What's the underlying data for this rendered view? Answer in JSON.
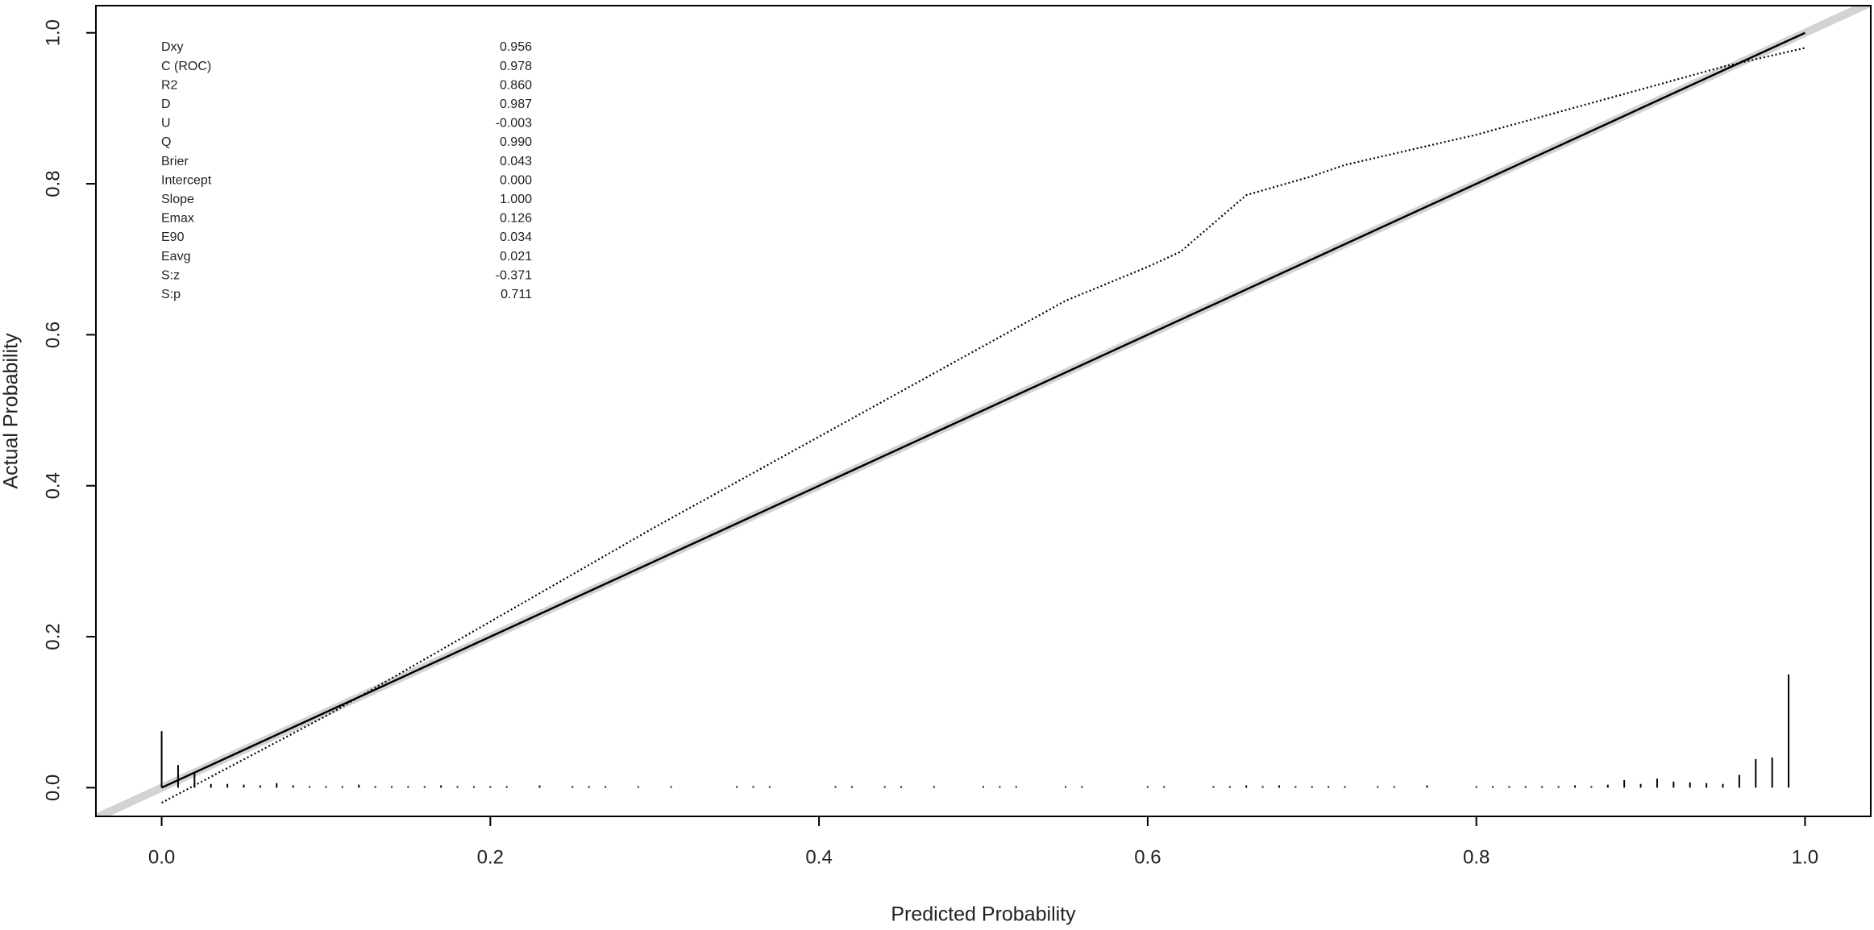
{
  "chart_data": {
    "type": "line",
    "x_label": "Predicted Probability",
    "y_label": "Actual Probability",
    "xlim": [
      -0.04,
      1.04
    ],
    "ylim": [
      -0.038,
      1.036
    ],
    "xticks": [
      {
        "value": 0,
        "label": "0.0"
      },
      0.2,
      0.4,
      0.6,
      0.8,
      {
        "value": 1,
        "label": "1.0"
      }
    ],
    "yticks": [
      {
        "value": 0,
        "label": "0.0"
      },
      0.2,
      0.4,
      0.6,
      0.8,
      {
        "value": 1,
        "label": "1.0"
      }
    ],
    "series": [
      {
        "style": "ideal",
        "color": "#d3d3d3",
        "x": [
          -0.04,
          1.04
        ],
        "values": [
          -0.04,
          1.04
        ]
      },
      {
        "style": "solid",
        "color": "#000000",
        "x": [
          0,
          1
        ],
        "values": [
          0,
          1
        ]
      },
      {
        "style": "dotted",
        "color": "#000000",
        "x": [
          0,
          0.1,
          0.2,
          0.3,
          0.4,
          0.5,
          0.55,
          0.6,
          0.62,
          0.66,
          0.7,
          0.72,
          0.8,
          0.85,
          0.9,
          0.95,
          1.0
        ],
        "values": [
          -0.02,
          0.095,
          0.22,
          0.345,
          0.465,
          0.585,
          0.645,
          0.69,
          0.71,
          0.785,
          0.81,
          0.825,
          0.865,
          0.895,
          0.925,
          0.955,
          0.98
        ]
      },
      {
        "style": "spikes",
        "color": "#000000",
        "x": [
          0,
          0.01,
          0.02,
          0.03,
          0.04,
          0.05,
          0.06,
          0.07,
          0.08,
          0.09,
          0.1,
          0.11,
          0.12,
          0.13,
          0.14,
          0.15,
          0.16,
          0.17,
          0.18,
          0.19,
          0.2,
          0.21,
          0.23,
          0.25,
          0.26,
          0.27,
          0.29,
          0.31,
          0.35,
          0.36,
          0.37,
          0.41,
          0.42,
          0.44,
          0.45,
          0.47,
          0.5,
          0.51,
          0.52,
          0.55,
          0.56,
          0.6,
          0.61,
          0.64,
          0.65,
          0.66,
          0.67,
          0.68,
          0.69,
          0.7,
          0.71,
          0.72,
          0.74,
          0.75,
          0.77,
          0.8,
          0.81,
          0.82,
          0.83,
          0.84,
          0.85,
          0.86,
          0.87,
          0.88,
          0.89,
          0.9,
          0.91,
          0.92,
          0.93,
          0.94,
          0.95,
          0.96,
          0.97,
          0.98,
          0.99
        ],
        "values": [
          0.075,
          0.03,
          0.02,
          0.005,
          0.005,
          0.004,
          0.003,
          0.006,
          0.003,
          0.002,
          0.002,
          0.002,
          0.004,
          0.002,
          0.002,
          0.002,
          0.002,
          0.003,
          0.002,
          0.002,
          0.002,
          0.002,
          0.003,
          0.002,
          0.002,
          0.002,
          0.002,
          0.002,
          0.002,
          0.002,
          0.002,
          0.002,
          0.002,
          0.002,
          0.002,
          0.002,
          0.002,
          0.002,
          0.002,
          0.002,
          0.002,
          0.002,
          0.002,
          0.002,
          0.002,
          0.003,
          0.002,
          0.003,
          0.002,
          0.002,
          0.002,
          0.002,
          0.002,
          0.002,
          0.003,
          0.002,
          0.002,
          0.002,
          0.002,
          0.002,
          0.002,
          0.003,
          0.002,
          0.004,
          0.01,
          0.005,
          0.012,
          0.008,
          0.007,
          0.006,
          0.005,
          0.017,
          0.038,
          0.04,
          0.15
        ]
      }
    ],
    "stats_labels": [
      "Dxy",
      "C (ROC)",
      "R2",
      "D",
      "U",
      "Q",
      "Brier",
      "Intercept",
      "Slope",
      "Emax",
      "E90",
      "Eavg",
      "S:z",
      "S:p"
    ],
    "stats_values": [
      "0.956",
      "0.978",
      "0.860",
      "0.987",
      "-0.003",
      "0.990",
      "0.043",
      "0.000",
      "1.000",
      "0.126",
      "0.034",
      "0.021",
      "-0.371",
      "0.711"
    ]
  }
}
